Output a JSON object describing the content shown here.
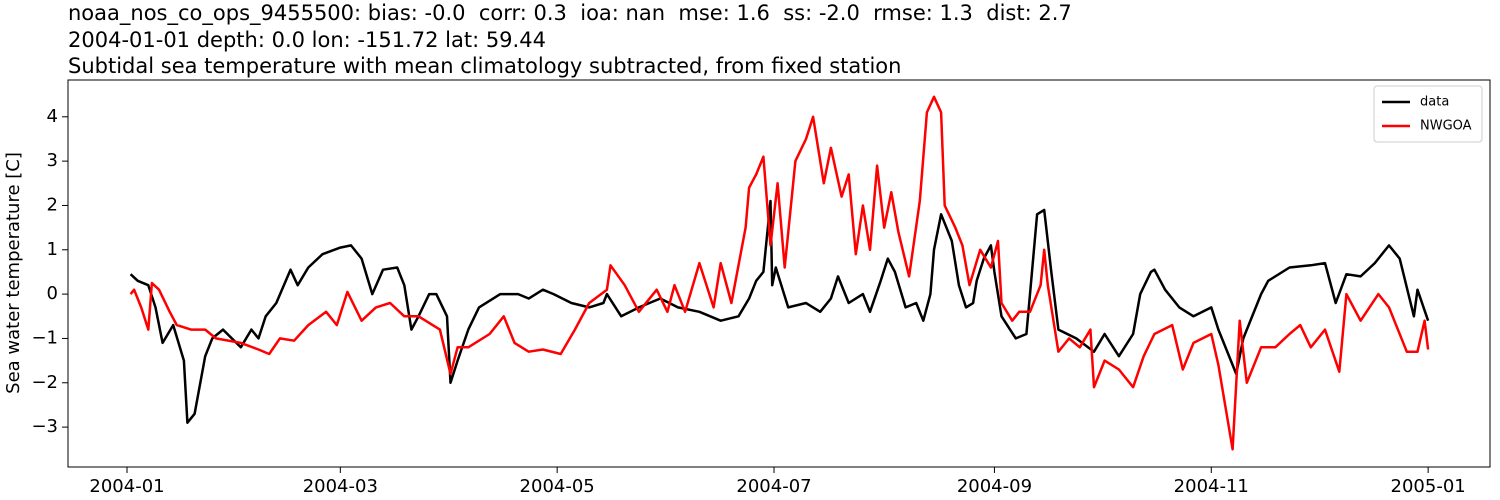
{
  "chart_data": {
    "type": "line",
    "title": [
      "noaa_nos_co_ops_9455500: bias: -0.0  corr: 0.3  ioa: nan  mse: 1.6  ss: -2.0  rmse: 1.3  dist: 2.7",
      "2004-01-01 depth: 0.0 lon: -151.72 lat: 59.44",
      "Subtidal sea temperature with mean climatology subtracted, from fixed station"
    ],
    "y_label": "Sea water temperature [C]",
    "xlim": [
      -16.6,
      383.4
    ],
    "xticks": [
      {
        "value": 0,
        "label": "2004-01"
      },
      {
        "value": 60,
        "label": "2004-03"
      },
      {
        "value": 121,
        "label": "2004-05"
      },
      {
        "value": 182,
        "label": "2004-07"
      },
      {
        "value": 244,
        "label": "2004-09"
      },
      {
        "value": 305,
        "label": "2004-11"
      },
      {
        "value": 366,
        "label": "2005-01"
      }
    ],
    "ylim": [
      -3.9,
      4.83
    ],
    "yticks": [
      {
        "value": -3,
        "label": "−3"
      },
      {
        "value": -2,
        "label": "−2"
      },
      {
        "value": -1,
        "label": "−1"
      },
      0,
      1,
      2,
      3,
      4
    ],
    "legend": "upper right",
    "series": [
      {
        "name": "data",
        "color": "#000000",
        "x": [
          1,
          3,
          6,
          8,
          10,
          13,
          16,
          17,
          19,
          22,
          24,
          27,
          32,
          35,
          37,
          39,
          42,
          46,
          48,
          51,
          55,
          60,
          63,
          66,
          69,
          72,
          76,
          78,
          80,
          82,
          85,
          87,
          90,
          91,
          93,
          96,
          99,
          105,
          110,
          113,
          117,
          120,
          125,
          130,
          134,
          135,
          139,
          144,
          150,
          155,
          161,
          167,
          172,
          175,
          177,
          179,
          181,
          181.5,
          182.5,
          186,
          191,
          195,
          198,
          200,
          203,
          207,
          209,
          212,
          214,
          216,
          219,
          222,
          224,
          226,
          227,
          229,
          232,
          234,
          236,
          238,
          239,
          241,
          243,
          244,
          246,
          250,
          253,
          254,
          256,
          258,
          260,
          262,
          267,
          272,
          275,
          279,
          283,
          285,
          288,
          289,
          292,
          296,
          300,
          305,
          307,
          312,
          314,
          319,
          321,
          327,
          333,
          337,
          340,
          343,
          347,
          351,
          355,
          358,
          362,
          363,
          366
        ],
        "values": [
          0.45,
          0.3,
          0.2,
          -0.3,
          -1.1,
          -0.7,
          -1.5,
          -2.9,
          -2.7,
          -1.4,
          -1,
          -0.8,
          -1.2,
          -0.8,
          -1,
          -0.5,
          -0.2,
          0.55,
          0.2,
          0.6,
          0.9,
          1.05,
          1.1,
          0.8,
          0,
          0.55,
          0.6,
          0.2,
          -0.8,
          -0.5,
          0,
          0,
          -0.5,
          -2,
          -1.5,
          -0.8,
          -0.3,
          0,
          0,
          -0.1,
          0.1,
          0,
          -0.2,
          -0.3,
          -0.2,
          0,
          -0.5,
          -0.3,
          -0.1,
          -0.3,
          -0.4,
          -0.6,
          -0.5,
          -0.1,
          0.3,
          0.5,
          2.1,
          0.2,
          0.6,
          -0.3,
          -0.2,
          -0.4,
          -0.1,
          0.4,
          -0.2,
          0,
          -0.4,
          0.3,
          0.8,
          0.5,
          -0.3,
          -0.2,
          -0.6,
          0,
          1.0,
          1.8,
          1.2,
          0.2,
          -0.3,
          -0.2,
          0.3,
          0.8,
          1.1,
          0.5,
          -0.5,
          -1,
          -0.9,
          0,
          1.8,
          1.9,
          0.5,
          -0.8,
          -1,
          -1.3,
          -0.9,
          -1.4,
          -0.9,
          0,
          0.5,
          0.55,
          0.1,
          -0.3,
          -0.5,
          -0.3,
          -0.8,
          -1.8,
          -1,
          0,
          0.3,
          0.6,
          0.65,
          0.7,
          -0.2,
          0.45,
          0.4,
          0.7,
          1.1,
          0.8,
          -0.5,
          0.1,
          -0.6
        ]
      },
      {
        "name": "NWGOA",
        "color": "#ff0000",
        "x": [
          1,
          2,
          4,
          6,
          7,
          9,
          12,
          14,
          18,
          22,
          25,
          32,
          37,
          40,
          43,
          47,
          51,
          56,
          59,
          62,
          66,
          70,
          74,
          78,
          82,
          88,
          91,
          93,
          96,
          102,
          106,
          109,
          113,
          117,
          122,
          126,
          130,
          135,
          136,
          140,
          144,
          149,
          152,
          154,
          157,
          161,
          165,
          167,
          170,
          174,
          175,
          177,
          179,
          181,
          183,
          185,
          188,
          191,
          193,
          196,
          198,
          201,
          203,
          205,
          207,
          209,
          211,
          213,
          215,
          217,
          220,
          223,
          225,
          227,
          229,
          230,
          233,
          235,
          237,
          240,
          243,
          245,
          246,
          249,
          251,
          254,
          257,
          258,
          259,
          262,
          265,
          268,
          271,
          272,
          275,
          279,
          283,
          286,
          289,
          294,
          297,
          300,
          305,
          307,
          311,
          313,
          315,
          319,
          323,
          327,
          330,
          333,
          337,
          341,
          343,
          347,
          352,
          355,
          360,
          363,
          365,
          366
        ],
        "values": [
          0,
          0.1,
          -0.3,
          -0.8,
          0.25,
          0.1,
          -0.4,
          -0.7,
          -0.8,
          -0.8,
          -1,
          -1.1,
          -1.25,
          -1.35,
          -1,
          -1.05,
          -0.7,
          -0.4,
          -0.7,
          0.05,
          -0.6,
          -0.3,
          -0.2,
          -0.5,
          -0.5,
          -0.8,
          -1.8,
          -1.2,
          -1.2,
          -0.9,
          -0.5,
          -1.1,
          -1.3,
          -1.25,
          -1.35,
          -0.8,
          -0.2,
          0.1,
          0.65,
          0.2,
          -0.4,
          0.1,
          -0.4,
          0.2,
          -0.4,
          0.7,
          -0.3,
          0.7,
          -0.2,
          1.5,
          2.4,
          2.7,
          3.1,
          1.1,
          2.5,
          0.6,
          3.0,
          3.5,
          4.0,
          2.5,
          3.3,
          2.2,
          2.7,
          0.9,
          2.0,
          1.0,
          2.9,
          1.5,
          2.3,
          1.4,
          0.4,
          2.1,
          4.1,
          4.45,
          4.1,
          2.0,
          1.5,
          1.1,
          0.2,
          1.0,
          0.6,
          1.2,
          -0.2,
          -0.6,
          -0.4,
          -0.4,
          0.2,
          1.0,
          0.2,
          -1.3,
          -1.0,
          -1.2,
          -0.8,
          -2.1,
          -1.5,
          -1.7,
          -2.1,
          -1.4,
          -0.9,
          -0.7,
          -1.7,
          -1.1,
          -0.9,
          -1.6,
          -3.5,
          -0.6,
          -2.0,
          -1.2,
          -1.2,
          -0.9,
          -0.7,
          -1.2,
          -0.8,
          -1.75,
          0,
          -0.6,
          0,
          -0.3,
          -1.3,
          -1.3,
          -0.6,
          -1.25
        ]
      }
    ]
  }
}
